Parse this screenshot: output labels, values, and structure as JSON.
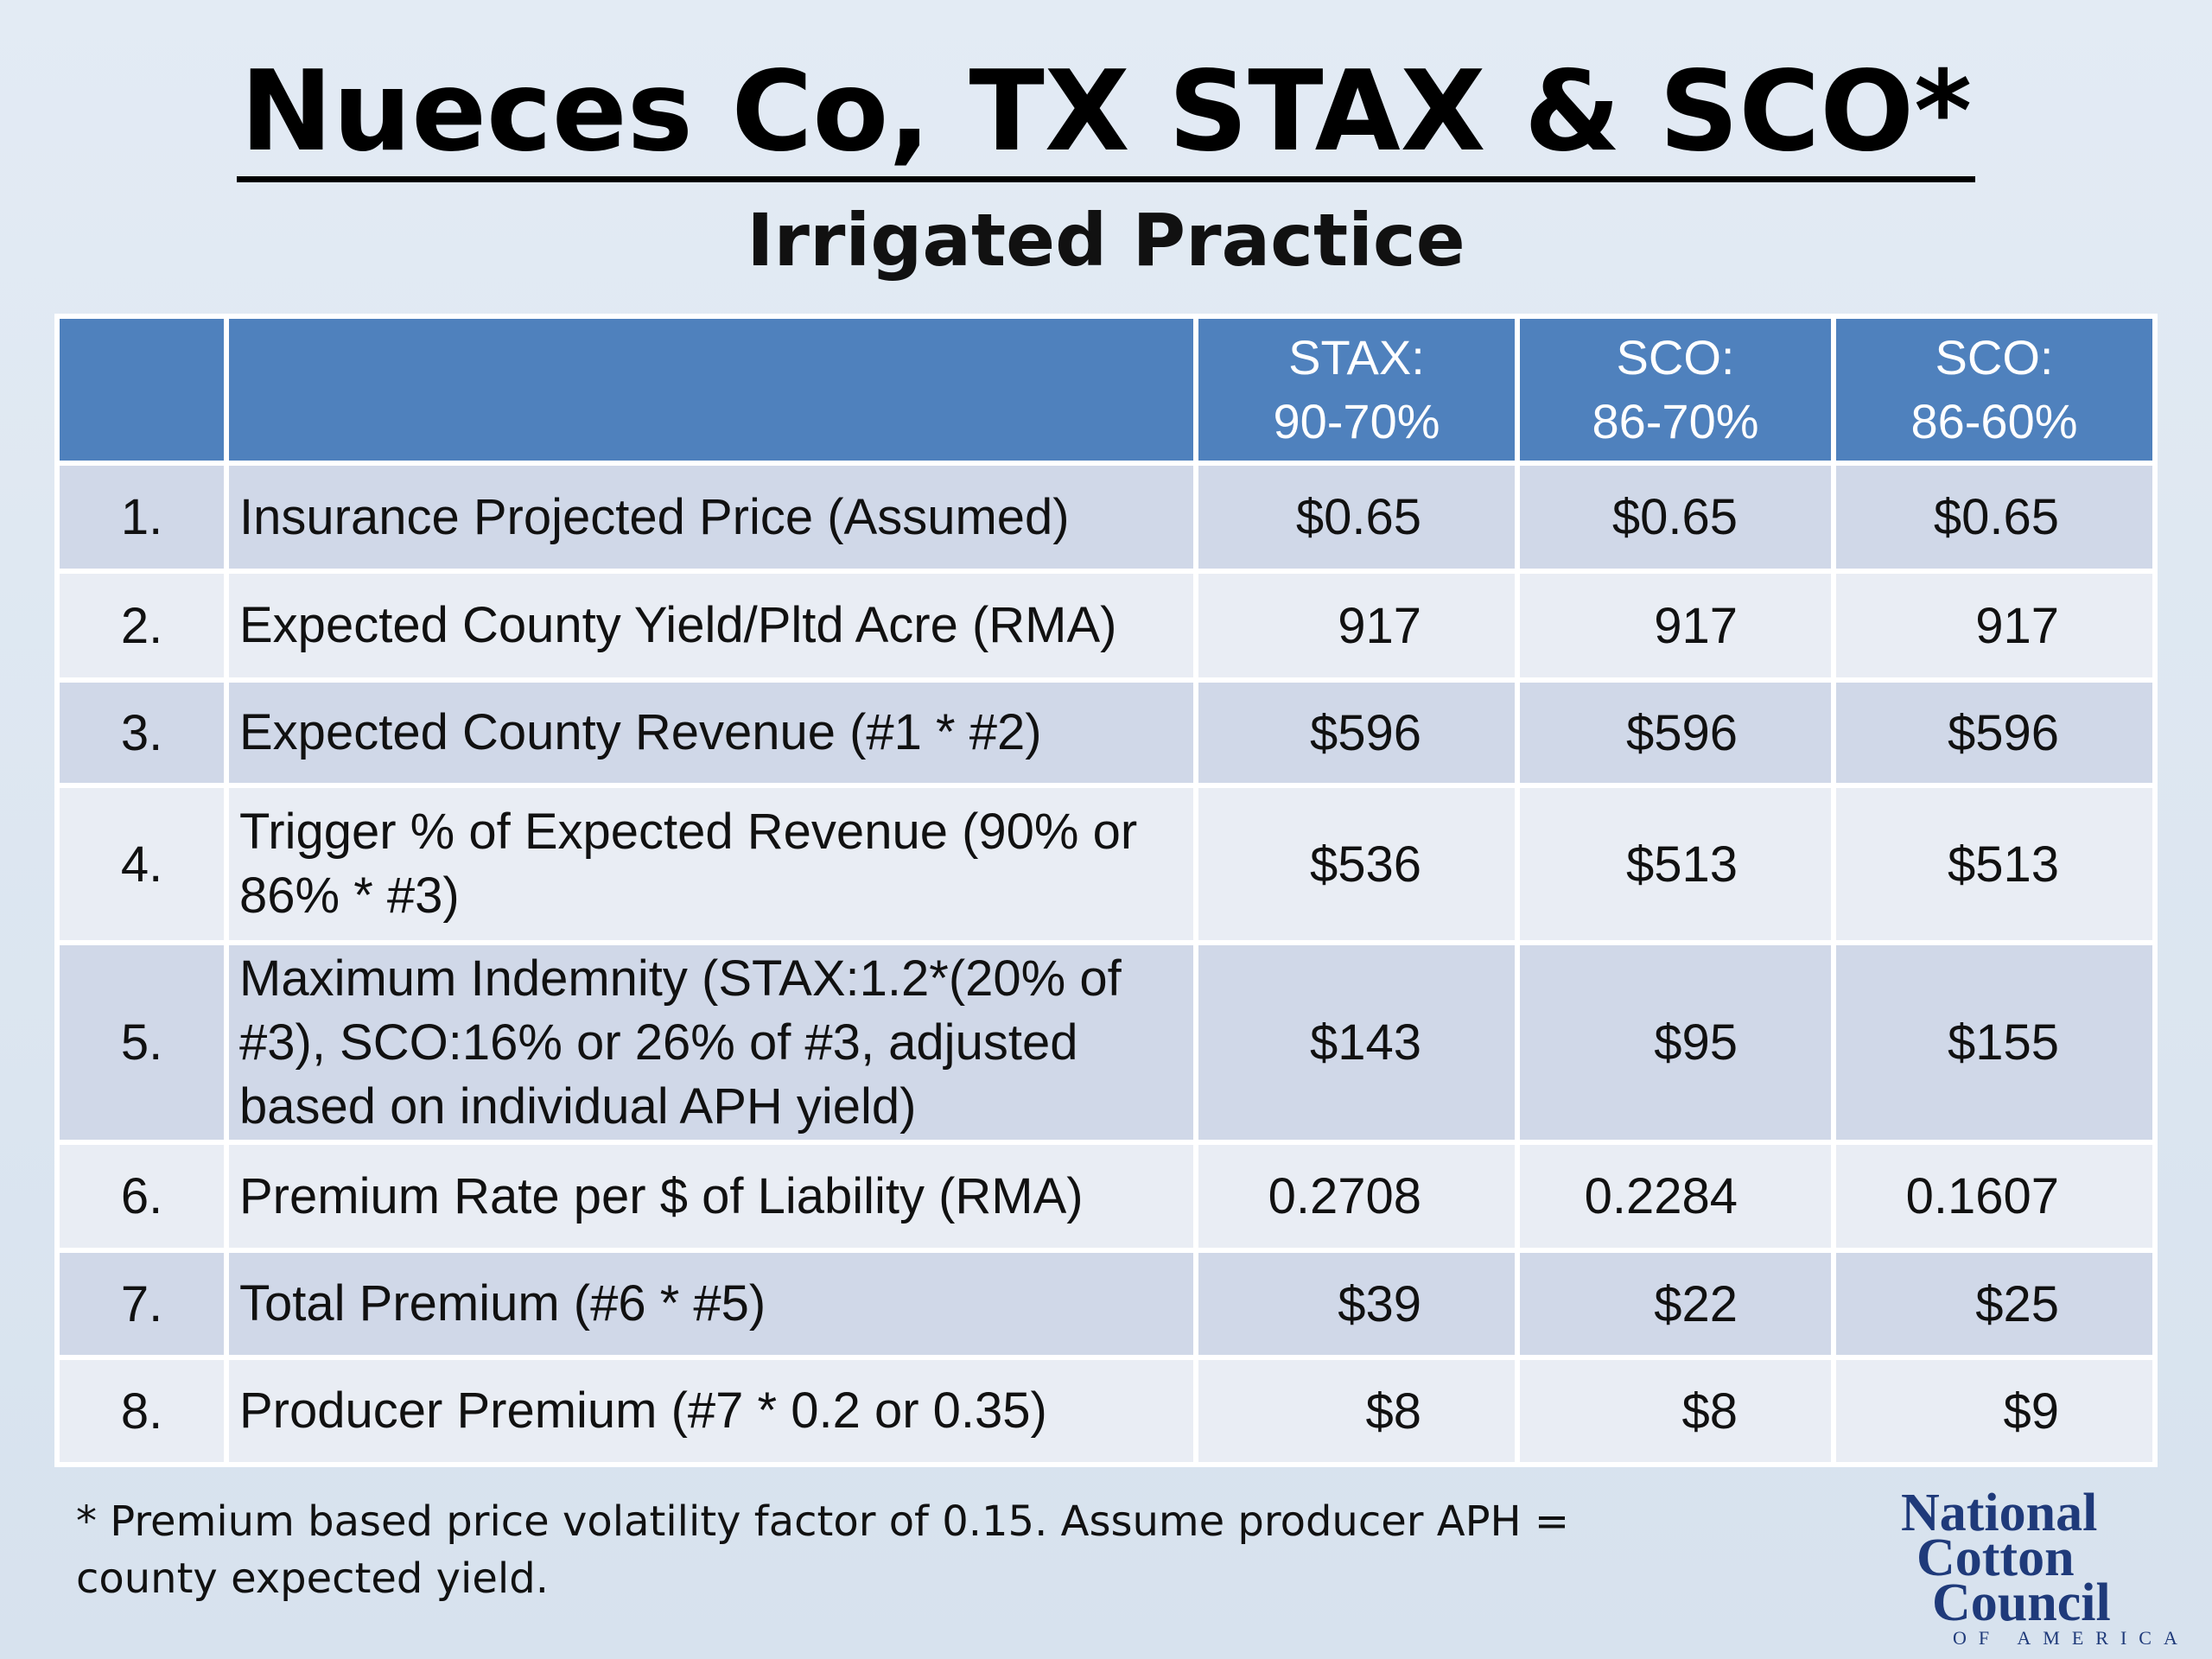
{
  "header": {
    "title": "Nueces Co, TX STAX & SCO*",
    "subtitle": "Irrigated Practice"
  },
  "table": {
    "columns": [
      [
        "STAX:",
        "90-70%"
      ],
      [
        "SCO:",
        "86-70%"
      ],
      [
        "SCO:",
        "86-60%"
      ]
    ],
    "rows": [
      [
        "1.",
        "Insurance Projected Price (Assumed)",
        "$0.65",
        "$0.65",
        "$0.65"
      ],
      [
        "2.",
        "Expected County Yield/Pltd Acre (RMA)",
        "917",
        "917",
        "917"
      ],
      [
        "3.",
        "Expected County Revenue (#1 * #2)",
        "$596",
        "$596",
        "$596"
      ],
      [
        "4.",
        "Trigger % of Expected Revenue (90% or 86% * #3)",
        "$536",
        "$513",
        "$513"
      ],
      [
        "5.",
        "Maximum Indemnity (STAX:1.2*(20% of #3), SCO:16% or 26% of #3, adjusted based on individual APH yield)",
        "$143",
        "$95",
        "$155"
      ],
      [
        "6.",
        "Premium Rate per $ of Liability (RMA)",
        "0.2708",
        "0.2284",
        "0.1607"
      ],
      [
        "7.",
        "Total Premium (#6 * #5)",
        "$39",
        "$22",
        "$25"
      ],
      [
        "8.",
        "Producer Premium (#7 * 0.2 or 0.35)",
        "$8",
        "$8",
        "$9"
      ]
    ]
  },
  "footnote": "* Premium based price volatility factor of 0.15. Assume producer APH = county expected yield.",
  "logo": {
    "lines": [
      "National",
      "Cotton",
      "Council"
    ],
    "tagline": "OF AMERICA"
  }
}
